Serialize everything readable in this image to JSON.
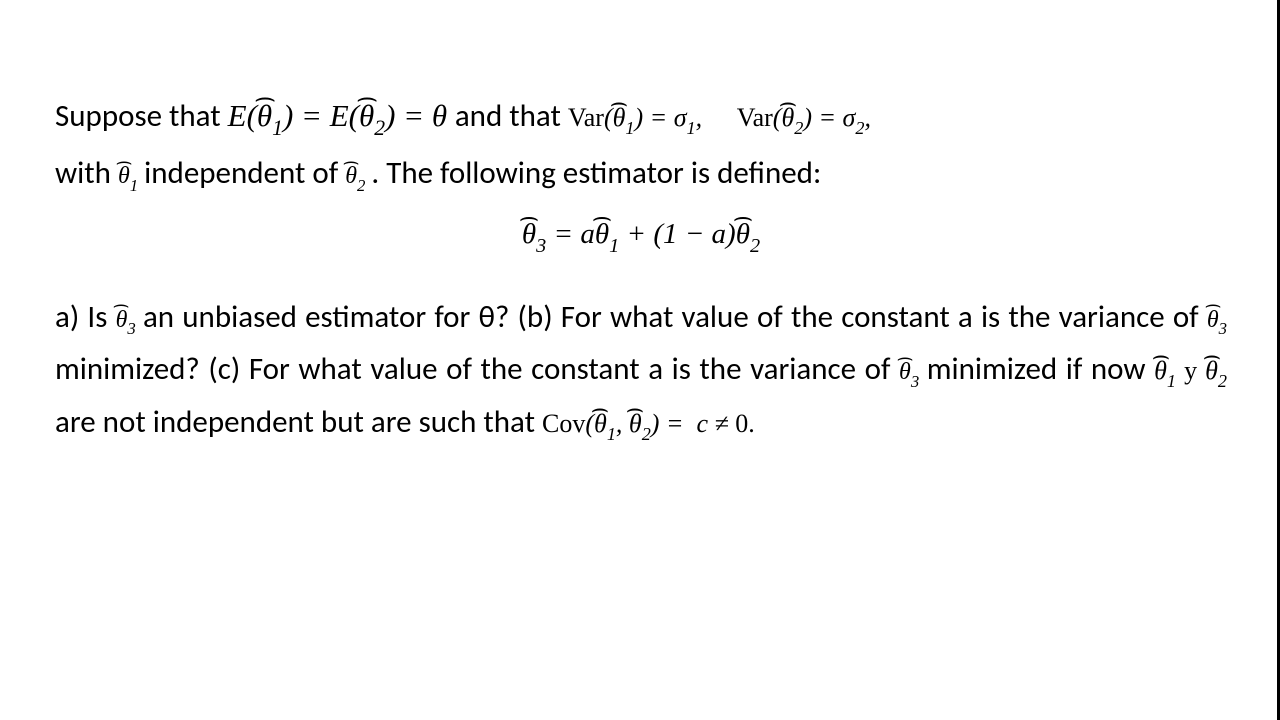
{
  "text": {
    "l1_a": "Suppose that ",
    "l1_b": " and that ",
    "l2_a": "with ",
    "l2_b": " independent of ",
    "l2_c": ". The following estimator is defined:",
    "p2_a": "a) Is ",
    "p2_b": " an unbiased estimator for θ? (b) For what value of the constant a is the variance of ",
    "p2_c": " minimized? (c) For what value of the constant a is the variance of ",
    "p2_d": " minimized if now ",
    "p2_e": " are not independent but are such that "
  },
  "math": {
    "expect_eq": "E(θ̂₁) = E(θ̂₂) = θ",
    "var1": "Var(θ̂₁) = σ₁,",
    "var2": "Var(θ̂₂) = σ₂,",
    "theta1": "θ̂₁",
    "theta2": "θ̂₂",
    "theta3": "θ̂₃",
    "def_eq": "θ̂₃ = aθ̂₁ + (1 − a)θ̂₂",
    "y_sep": " y ",
    "cov_eq": "Cov(θ̂₁, θ̂₂) =  c ≠ 0."
  },
  "style": {
    "body_font": "Calibri, Arial, sans-serif",
    "math_font": "Cambria Math, Times New Roman, serif",
    "text_color": "#000000",
    "bg_color": "#ffffff",
    "body_fontsize": 31,
    "math_inline_fontsize": 29,
    "math_small_fontsize": 26
  }
}
